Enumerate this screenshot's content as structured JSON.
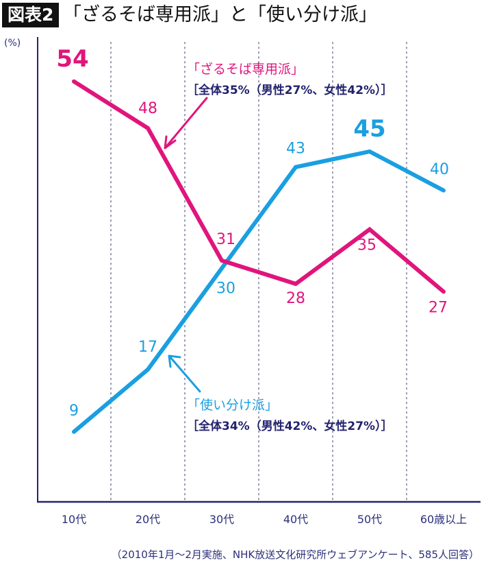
{
  "header": {
    "badge": "図表2",
    "title": "「ざるそば専用派」と「使い分け派」"
  },
  "colors": {
    "zaru": "#e0157c",
    "tsukaiwake": "#1a9fe0",
    "axis": "#22226e",
    "grid": "#9a9ab0"
  },
  "annotations": {
    "zaru": {
      "title": "「ざるそば専用派」",
      "detail": "［全体35%（男性27%、女性42%）］"
    },
    "tsukaiwake": {
      "title": "「使い分け派」",
      "detail": "［全体34%（男性42%、女性27%）］"
    }
  },
  "source": "（2010年1月〜2月実施、NHK放送文化研究所ウェブアンケート、585人回答）",
  "chart_data": {
    "type": "line",
    "title": "「ざるそば専用派」と「使い分け派」",
    "xlabel": "",
    "ylabel": "(%)",
    "categories": [
      "10代",
      "20代",
      "30代",
      "40代",
      "50代",
      "60歳以上"
    ],
    "series": [
      {
        "name": "ざるそば専用派",
        "color": "#e0157c",
        "values": [
          54,
          48,
          31,
          28,
          35,
          27
        ],
        "label_pos": [
          "above",
          "above",
          "above",
          "below",
          "below",
          "below"
        ]
      },
      {
        "name": "使い分け派",
        "color": "#1a9fe0",
        "values": [
          9,
          17,
          30,
          43,
          45,
          40
        ],
        "label_pos": [
          "above",
          "above",
          "below",
          "above",
          "above",
          "above"
        ]
      }
    ],
    "highlight_labels": {
      "ざるそば専用派": 0,
      "使い分け派": 4
    },
    "ylim": [
      0,
      59
    ],
    "grid": {
      "vertical": true,
      "style": "dotted",
      "horizontal": false
    },
    "legend": "inline-annotations"
  }
}
